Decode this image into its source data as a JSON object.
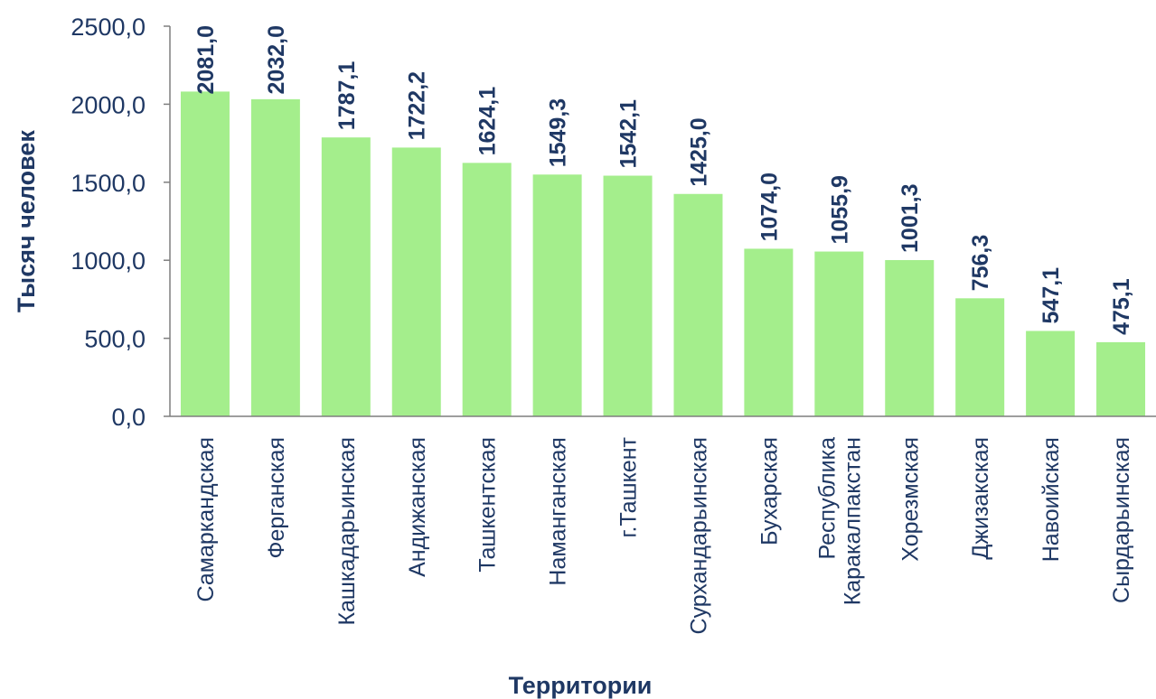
{
  "chart_data": {
    "type": "bar",
    "title": "",
    "xlabel": "Территории",
    "ylabel": "Тысяч человек",
    "ylim": [
      0,
      2500
    ],
    "yticks": [
      0,
      500,
      1000,
      1500,
      2000,
      2500
    ],
    "ytick_labels": [
      "0,0",
      "500,0",
      "1000,0",
      "1500,0",
      "2000,0",
      "2500,0"
    ],
    "categories": [
      [
        "Самаркандская"
      ],
      [
        "Ферганская"
      ],
      [
        "Кашкадарьинская"
      ],
      [
        "Андижанская"
      ],
      [
        "Ташкентская"
      ],
      [
        "Наманганская"
      ],
      [
        "г.Ташкент"
      ],
      [
        "Сурхандарьинская"
      ],
      [
        "Бухарская"
      ],
      [
        "Республика",
        "Каракалпакстан"
      ],
      [
        "Хорезмская"
      ],
      [
        "Джизакская"
      ],
      [
        "Навоийская"
      ],
      [
        "Сырдарьинская"
      ]
    ],
    "values": [
      2081.0,
      2032.0,
      1787.1,
      1722.2,
      1624.1,
      1549.3,
      1542.1,
      1425.0,
      1074.0,
      1055.9,
      1001.3,
      756.3,
      547.1,
      475.1
    ],
    "value_labels": [
      "2081,0",
      "2032,0",
      "1787,1",
      "1722,2",
      "1624,1",
      "1549,3",
      "1542,1",
      "1425,0",
      "1074,0",
      "1055,9",
      "1001,3",
      "756,3",
      "547,1",
      "475,1"
    ],
    "grid": false,
    "legend": "none",
    "colors": {
      "bar": "#a4ee8c",
      "text": "#1f3864",
      "axis": "#7f7f7f"
    }
  }
}
